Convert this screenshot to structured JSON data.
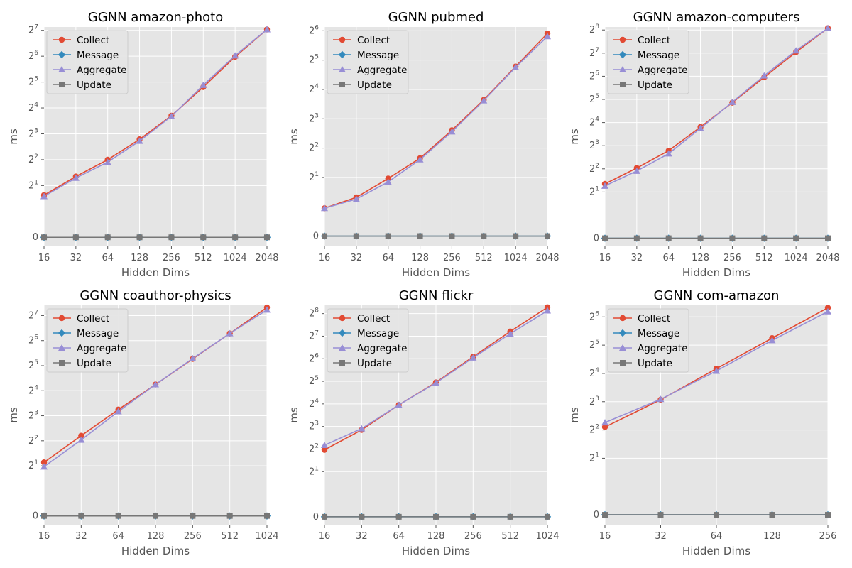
{
  "chart_data": [
    {
      "type": "line",
      "title": "GGNN amazon-photo",
      "xlabel": "Hidden Dims",
      "ylabel": "ms",
      "x": [
        16,
        32,
        64,
        128,
        256,
        512,
        1024,
        2048
      ],
      "x_scale": "log2",
      "y_scale": "symlog2",
      "y_ticks": [
        "0",
        "2^1",
        "2^2",
        "2^3",
        "2^4",
        "2^5",
        "2^6",
        "2^7"
      ],
      "ylim": [
        0,
        140
      ],
      "grid": true,
      "legend_loc": "upper left",
      "series": [
        {
          "name": "Collect",
          "values": [
            1.55,
            2.55,
            4.0,
            6.9,
            13.0,
            28.0,
            63.0,
            131.0
          ],
          "color": "#e24a33",
          "marker": "circle"
        },
        {
          "name": "Message",
          "values": [
            0,
            0,
            0,
            0,
            0,
            0,
            0,
            0
          ],
          "color": "#348abd",
          "marker": "diamond"
        },
        {
          "name": "Aggregate",
          "values": [
            1.5,
            2.45,
            3.75,
            6.6,
            12.8,
            29.5,
            65.0,
            131.0
          ],
          "color": "#988ed5",
          "marker": "triangle"
        },
        {
          "name": "Update",
          "values": [
            0,
            0,
            0,
            0,
            0,
            0,
            0,
            0
          ],
          "color": "#777777",
          "marker": "square"
        }
      ]
    },
    {
      "type": "line",
      "title": "GGNN pubmed",
      "xlabel": "Hidden Dims",
      "ylabel": "ms",
      "x": [
        16,
        32,
        64,
        128,
        256,
        512,
        1024,
        2048
      ],
      "x_scale": "log2",
      "y_scale": "symlog2",
      "y_ticks": [
        "0",
        "2^1",
        "2^2",
        "2^3",
        "2^4",
        "2^5",
        "2^6"
      ],
      "ylim": [
        0,
        70
      ],
      "grid": true,
      "legend_loc": "upper left",
      "series": [
        {
          "name": "Collect",
          "values": [
            0.95,
            1.25,
            1.95,
            3.15,
            6.1,
            12.5,
            27.5,
            60.0
          ],
          "color": "#e24a33",
          "marker": "circle"
        },
        {
          "name": "Message",
          "values": [
            0,
            0,
            0,
            0,
            0,
            0,
            0,
            0
          ],
          "color": "#348abd",
          "marker": "diamond"
        },
        {
          "name": "Aggregate",
          "values": [
            0.95,
            1.2,
            1.8,
            3.05,
            5.9,
            12.3,
            27.0,
            56.0
          ],
          "color": "#988ed5",
          "marker": "triangle"
        },
        {
          "name": "Update",
          "values": [
            0,
            0,
            0,
            0,
            0,
            0,
            0,
            0
          ],
          "color": "#777777",
          "marker": "square"
        }
      ]
    },
    {
      "type": "line",
      "title": "GGNN amazon-computers",
      "xlabel": "Hidden Dims",
      "ylabel": "ms",
      "x": [
        16,
        32,
        64,
        128,
        256,
        512,
        1024,
        2048
      ],
      "x_scale": "log2",
      "y_scale": "symlog2",
      "y_ticks": [
        "0",
        "2^1",
        "2^2",
        "2^3",
        "2^4",
        "2^5",
        "2^6",
        "2^7",
        "2^8"
      ],
      "ylim": [
        0,
        280
      ],
      "grid": true,
      "legend_loc": "upper left",
      "series": [
        {
          "name": "Collect",
          "values": [
            2.55,
            4.1,
            6.9,
            14.0,
            29.0,
            62.0,
            132.0,
            270.0
          ],
          "color": "#e24a33",
          "marker": "circle"
        },
        {
          "name": "Message",
          "values": [
            0,
            0,
            0,
            0,
            0,
            0,
            0,
            0
          ],
          "color": "#348abd",
          "marker": "diamond"
        },
        {
          "name": "Aggregate",
          "values": [
            2.4,
            3.75,
            6.3,
            13.5,
            29.5,
            65.0,
            138.0,
            270.0
          ],
          "color": "#988ed5",
          "marker": "triangle"
        },
        {
          "name": "Update",
          "values": [
            0,
            0,
            0,
            0,
            0,
            0,
            0,
            0
          ],
          "color": "#777777",
          "marker": "square"
        }
      ]
    },
    {
      "type": "line",
      "title": "GGNN coauthor-physics",
      "xlabel": "Hidden Dims",
      "ylabel": "ms",
      "x": [
        16,
        32,
        64,
        128,
        256,
        512,
        1024
      ],
      "x_scale": "log2",
      "y_scale": "symlog2",
      "y_ticks": [
        "0",
        "2^1",
        "2^2",
        "2^3",
        "2^4",
        "2^5",
        "2^6",
        "2^7"
      ],
      "ylim": [
        0,
        170
      ],
      "grid": true,
      "legend_loc": "upper left",
      "series": [
        {
          "name": "Collect",
          "values": [
            2.2,
            4.6,
            9.5,
            19.0,
            38.5,
            78.0,
            160.0
          ],
          "color": "#e24a33",
          "marker": "circle"
        },
        {
          "name": "Message",
          "values": [
            0,
            0,
            0,
            0,
            0,
            0,
            0
          ],
          "color": "#348abd",
          "marker": "diamond"
        },
        {
          "name": "Aggregate",
          "values": [
            1.95,
            4.1,
            9.0,
            19.0,
            39.0,
            78.0,
            150.0
          ],
          "color": "#988ed5",
          "marker": "triangle"
        },
        {
          "name": "Update",
          "values": [
            0,
            0,
            0,
            0,
            0,
            0,
            0
          ],
          "color": "#777777",
          "marker": "square"
        }
      ]
    },
    {
      "type": "line",
      "title": "GGNN flickr",
      "xlabel": "Hidden Dims",
      "ylabel": "ms",
      "x": [
        16,
        32,
        64,
        128,
        256,
        512,
        1024
      ],
      "x_scale": "log2",
      "y_scale": "symlog2",
      "y_ticks": [
        "0",
        "2^1",
        "2^2",
        "2^3",
        "2^4",
        "2^5",
        "2^6",
        "2^7",
        "2^8"
      ],
      "ylim": [
        0,
        330
      ],
      "grid": true,
      "legend_loc": "upper left",
      "series": [
        {
          "name": "Collect",
          "values": [
            3.9,
            7.2,
            15.5,
            31.0,
            68.0,
            148.0,
            310.0
          ],
          "color": "#e24a33",
          "marker": "circle"
        },
        {
          "name": "Message",
          "values": [
            0,
            0,
            0,
            0,
            0,
            0,
            0
          ],
          "color": "#348abd",
          "marker": "diamond"
        },
        {
          "name": "Aggregate",
          "values": [
            4.5,
            7.5,
            15.5,
            30.5,
            66.0,
            138.0,
            280.0
          ],
          "color": "#988ed5",
          "marker": "triangle"
        },
        {
          "name": "Update",
          "values": [
            0,
            0,
            0,
            0,
            0,
            0,
            0
          ],
          "color": "#777777",
          "marker": "square"
        }
      ]
    },
    {
      "type": "line",
      "title": "GGNN com-amazon",
      "xlabel": "Hidden Dims",
      "ylabel": "ms",
      "x": [
        16,
        32,
        64,
        128,
        256
      ],
      "x_scale": "log2",
      "y_scale": "symlog2",
      "y_ticks": [
        "0",
        "2^1",
        "2^2",
        "2^3",
        "2^4",
        "2^5",
        "2^6"
      ],
      "ylim": [
        0,
        85
      ],
      "grid": true,
      "legend_loc": "upper left",
      "series": [
        {
          "name": "Collect",
          "values": [
            4.3,
            8.4,
            18.0,
            38.0,
            80.0
          ],
          "color": "#e24a33",
          "marker": "circle"
        },
        {
          "name": "Message",
          "values": [
            0,
            0,
            0,
            0,
            0
          ],
          "color": "#348abd",
          "marker": "diamond"
        },
        {
          "name": "Aggregate",
          "values": [
            4.8,
            8.5,
            17.0,
            36.0,
            73.0
          ],
          "color": "#988ed5",
          "marker": "triangle"
        },
        {
          "name": "Update",
          "values": [
            0,
            0,
            0,
            0,
            0
          ],
          "color": "#777777",
          "marker": "square"
        }
      ]
    }
  ]
}
